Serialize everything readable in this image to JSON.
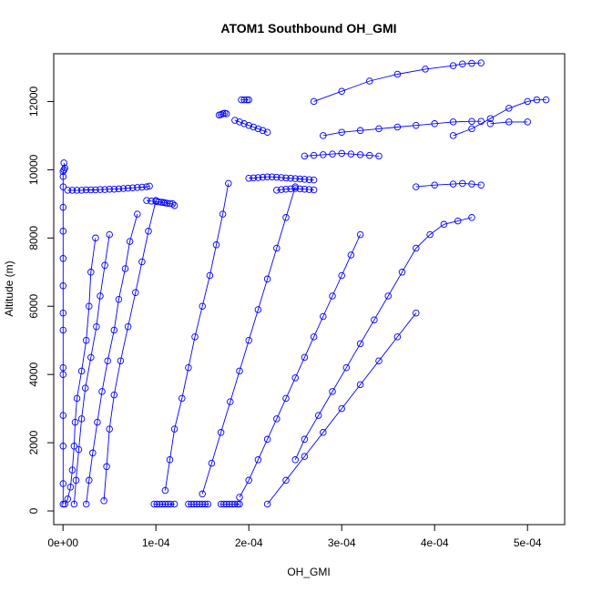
{
  "chart_data": {
    "type": "scatter",
    "title": "ATOM1 Southbound OH_GMI",
    "xlabel": "OH_GMI",
    "ylabel": "Altitude (m)",
    "xlim": [
      -1e-05,
      0.00054
    ],
    "ylim": [
      -400,
      13400
    ],
    "x_ticks": [
      0,
      0.0001,
      0.0002,
      0.0003,
      0.0004,
      0.0005
    ],
    "x_tick_labels": [
      "0e+00",
      "1e-04",
      "2e-04",
      "3e-04",
      "4e-04",
      "5e-04"
    ],
    "y_ticks": [
      0,
      2000,
      4000,
      6000,
      8000,
      10000,
      12000
    ],
    "y_tick_labels": [
      "0",
      "2000",
      "4000",
      "6000",
      "8000",
      "10000",
      "12000"
    ],
    "grid": false,
    "marker": "open-circle",
    "connected": true,
    "color": "#0000ff",
    "series": [
      {
        "x": [
          1e-07,
          1e-07,
          1e-07,
          1e-07,
          1e-07,
          1e-07,
          1e-07,
          1e-07,
          1e-07,
          1e-07,
          1e-07,
          1e-07,
          1e-07,
          1e-07,
          1e-07,
          1e-06,
          2e-06,
          1e-06
        ],
        "y": [
          200,
          800,
          1900,
          2800,
          4000,
          4200,
          5300,
          5800,
          6600,
          7400,
          8200,
          8900,
          9500,
          9800,
          9950,
          10000,
          10050,
          10200
        ]
      },
      {
        "x": [
          5e-06,
          1e-05,
          1.5e-05,
          2e-05,
          2.5e-05,
          3e-05,
          3.5e-05,
          4e-05,
          4.5e-05,
          5e-05,
          5.5e-05,
          6e-05,
          6.5e-05,
          7e-05,
          7.5e-05,
          8e-05,
          8.5e-05,
          9e-05,
          9.3e-05
        ],
        "y": [
          9400,
          9400,
          9400,
          9400,
          9410,
          9410,
          9410,
          9420,
          9420,
          9430,
          9430,
          9440,
          9450,
          9460,
          9470,
          9480,
          9490,
          9500,
          9520
        ]
      },
      {
        "x": [
          2e-06,
          5e-06,
          8e-06,
          1e-05,
          1.2e-05,
          1.3e-05,
          1.5e-05,
          2e-05,
          2.5e-05,
          2.8e-05,
          3e-05,
          3.5e-05
        ],
        "y": [
          200,
          350,
          700,
          1200,
          1900,
          2600,
          3300,
          4100,
          5000,
          6000,
          7000,
          8000
        ]
      },
      {
        "x": [
          1.2e-05,
          1.4e-05,
          1.7e-05,
          2e-05,
          2.4e-05,
          3e-05,
          3.6e-05,
          4e-05,
          4.5e-05,
          5e-05
        ],
        "y": [
          200,
          900,
          1800,
          2700,
          3600,
          4500,
          5400,
          6300,
          7200,
          8100
        ]
      },
      {
        "x": [
          2.5e-05,
          2.8e-05,
          3.2e-05,
          3.7e-05,
          4.2e-05,
          4.8e-05,
          5.5e-05,
          6e-05,
          6.7e-05,
          7.2e-05,
          8e-05
        ],
        "y": [
          200,
          900,
          1700,
          2600,
          3500,
          4400,
          5300,
          6200,
          7100,
          7900,
          8700
        ]
      },
      {
        "x": [
          4.4e-05,
          4.7e-05,
          5e-05,
          5.5e-05,
          6.2e-05,
          7e-05,
          7.8e-05,
          8.5e-05,
          9.2e-05,
          0.0001
        ],
        "y": [
          300,
          1300,
          2400,
          3400,
          4400,
          5400,
          6400,
          7300,
          8200,
          9100
        ]
      },
      {
        "x": [
          9e-05,
          9.5e-05,
          0.0001,
          0.000103,
          0.000106,
          0.000108,
          0.00011,
          0.000112,
          0.000115,
          0.000118,
          0.00012
        ],
        "y": [
          9100,
          9080,
          9070,
          9060,
          9050,
          9040,
          9030,
          9020,
          9010,
          9000,
          8950
        ]
      },
      {
        "x": [
          9.8e-05,
          0.000101,
          0.000104,
          0.000107,
          0.00011,
          0.000113,
          0.000116,
          0.00012
        ],
        "y": [
          200,
          200,
          200,
          200,
          200,
          200,
          200,
          200
        ]
      },
      {
        "x": [
          0.000135,
          0.000138,
          0.000141,
          0.000144,
          0.000147,
          0.00015,
          0.000153,
          0.000156
        ],
        "y": [
          200,
          200,
          200,
          200,
          200,
          200,
          200,
          200
        ]
      },
      {
        "x": [
          0.00017,
          0.000173,
          0.000176,
          0.000179,
          0.000182,
          0.000185,
          0.000188,
          0.00019
        ],
        "y": [
          200,
          200,
          200,
          200,
          200,
          200,
          200,
          200
        ]
      },
      {
        "x": [
          0.00011,
          0.000115,
          0.00012,
          0.000128,
          0.000135,
          0.000142,
          0.00015,
          0.000158,
          0.000165,
          0.000172,
          0.000178
        ],
        "y": [
          600,
          1500,
          2400,
          3300,
          4200,
          5100,
          6000,
          6900,
          7800,
          8700,
          9600
        ]
      },
      {
        "x": [
          0.000168,
          0.00017,
          0.000172,
          0.000174,
          0.000176
        ],
        "y": [
          11600,
          11620,
          11640,
          11660,
          11640
        ]
      },
      {
        "x": [
          0.000185,
          0.00019,
          0.000195,
          0.0002,
          0.000205,
          0.00021,
          0.000215,
          0.00022
        ],
        "y": [
          11450,
          11400,
          11350,
          11300,
          11250,
          11200,
          11150,
          11100
        ]
      },
      {
        "x": [
          0.000192,
          0.000195,
          0.000198,
          0.0002
        ],
        "y": [
          12050,
          12050,
          12050,
          12050
        ]
      },
      {
        "x": [
          0.00015,
          0.00016,
          0.00017,
          0.00018,
          0.00019,
          0.0002,
          0.00021,
          0.00022,
          0.00023,
          0.00024,
          0.00025
        ],
        "y": [
          500,
          1400,
          2300,
          3200,
          4100,
          5000,
          5900,
          6800,
          7700,
          8600,
          9500
        ]
      },
      {
        "x": [
          0.0002,
          0.000205,
          0.00021,
          0.000215,
          0.00022,
          0.000225,
          0.00023,
          0.000235,
          0.00024,
          0.000245,
          0.00025,
          0.000255,
          0.00026,
          0.000265,
          0.00027
        ],
        "y": [
          9750,
          9760,
          9770,
          9780,
          9790,
          9790,
          9780,
          9770,
          9760,
          9750,
          9740,
          9730,
          9720,
          9710,
          9700
        ]
      },
      {
        "x": [
          0.00023,
          0.000235,
          0.00024,
          0.000245,
          0.00025,
          0.000255,
          0.00026,
          0.000265,
          0.00027
        ],
        "y": [
          9400,
          9420,
          9430,
          9440,
          9450,
          9440,
          9430,
          9420,
          9410
        ]
      },
      {
        "x": [
          0.00019,
          0.0002,
          0.00021,
          0.00022,
          0.00023,
          0.00024,
          0.00025,
          0.00026,
          0.00027,
          0.00028,
          0.00029,
          0.0003,
          0.00031,
          0.00032
        ],
        "y": [
          400,
          900,
          1500,
          2100,
          2700,
          3300,
          3900,
          4500,
          5100,
          5700,
          6300,
          6900,
          7500,
          8100
        ]
      },
      {
        "x": [
          0.00022,
          0.00024,
          0.00026,
          0.00028,
          0.0003,
          0.00032,
          0.00034,
          0.00036,
          0.00038
        ],
        "y": [
          200,
          900,
          1600,
          2300,
          3000,
          3700,
          4400,
          5100,
          5800
        ]
      },
      {
        "x": [
          0.00025,
          0.00026,
          0.000275,
          0.00029,
          0.000305,
          0.00032,
          0.000335,
          0.00035,
          0.000365,
          0.00038,
          0.000395,
          0.00041,
          0.000425,
          0.00044
        ],
        "y": [
          1500,
          2100,
          2800,
          3500,
          4200,
          4900,
          5600,
          6300,
          7000,
          7700,
          8100,
          8400,
          8500,
          8600
        ]
      },
      {
        "x": [
          0.00026,
          0.00027,
          0.00028,
          0.00029,
          0.0003,
          0.00031,
          0.00032,
          0.00033,
          0.00034
        ],
        "y": [
          10400,
          10420,
          10440,
          10460,
          10480,
          10460,
          10440,
          10420,
          10400
        ]
      },
      {
        "x": [
          0.00028,
          0.0003,
          0.00032,
          0.00034,
          0.00036,
          0.00038,
          0.0004,
          0.00042,
          0.00044,
          0.00045
        ],
        "y": [
          11000,
          11100,
          11150,
          11200,
          11250,
          11300,
          11350,
          11400,
          11420,
          11420
        ]
      },
      {
        "x": [
          0.00038,
          0.0004,
          0.00042,
          0.00043,
          0.00044,
          0.00045
        ],
        "y": [
          9500,
          9550,
          9580,
          9600,
          9580,
          9550
        ]
      },
      {
        "x": [
          0.00027,
          0.0003,
          0.00033,
          0.00036,
          0.00039,
          0.00042,
          0.00043,
          0.00044,
          0.00045
        ],
        "y": [
          12000,
          12300,
          12600,
          12800,
          12950,
          13050,
          13100,
          13120,
          13130
        ]
      },
      {
        "x": [
          0.00042,
          0.00044,
          0.00046,
          0.00048,
          0.0005,
          0.00051,
          0.00052
        ],
        "y": [
          11000,
          11200,
          11500,
          11800,
          12000,
          12050,
          12050
        ]
      },
      {
        "x": [
          0.00046,
          0.00048,
          0.0005
        ],
        "y": [
          11350,
          11400,
          11400
        ]
      }
    ]
  }
}
